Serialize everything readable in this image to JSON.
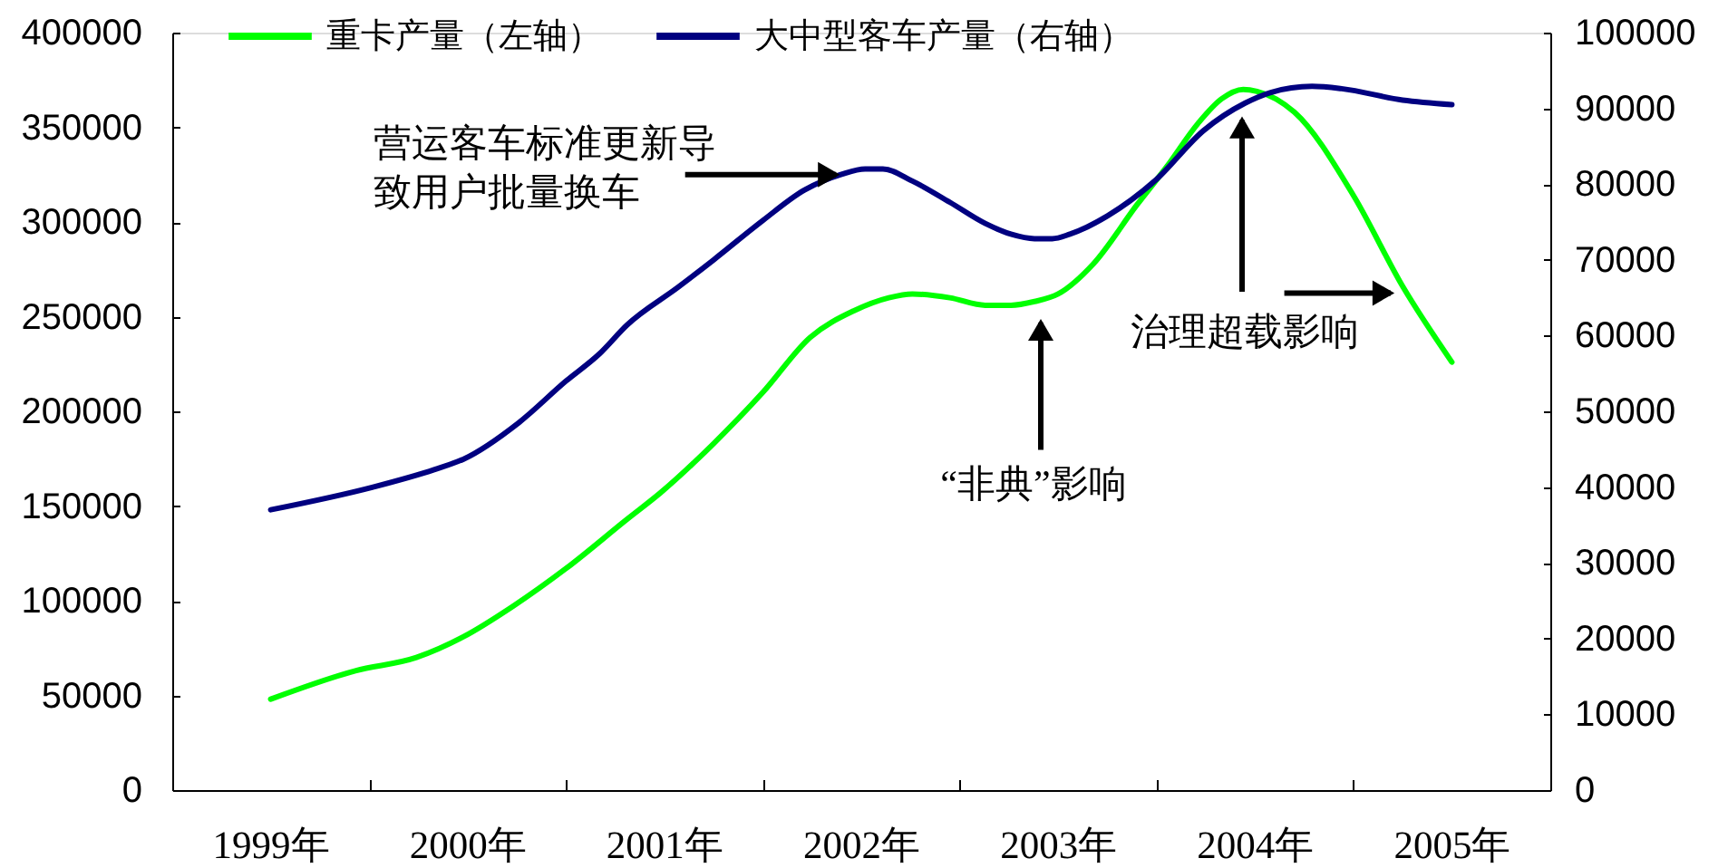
{
  "chart_data": {
    "type": "line",
    "legend": "top",
    "line_style": "solid",
    "xlim": [
      1998.5,
      2005.5
    ],
    "xticks": [
      {
        "value": 1999,
        "label": "1999年"
      },
      {
        "value": 1999.5,
        "label": null
      },
      {
        "value": 2000,
        "label": "2000年"
      },
      {
        "value": 2000.5,
        "label": null
      },
      {
        "value": 2001,
        "label": "2001年"
      },
      {
        "value": 2001.5,
        "label": null
      },
      {
        "value": 2002,
        "label": "2002年"
      },
      {
        "value": 2002.5,
        "label": null
      },
      {
        "value": 2003,
        "label": "2003年"
      },
      {
        "value": 2003.5,
        "label": null
      },
      {
        "value": 2004,
        "label": "2004年"
      },
      {
        "value": 2004.5,
        "label": null
      },
      {
        "value": 2005,
        "label": "2005年"
      }
    ],
    "ylim": [
      0,
      400000
    ],
    "yticks": [
      0,
      50000,
      100000,
      150000,
      200000,
      250000,
      300000,
      350000,
      400000
    ],
    "y2lim": [
      0,
      100000
    ],
    "y2ticks": [
      0,
      10000,
      20000,
      30000,
      40000,
      50000,
      60000,
      70000,
      80000,
      90000,
      100000
    ],
    "series": [
      {
        "name": "重卡产量（左轴）",
        "color": "#00ff00",
        "x": [
          1999.0,
          1999.43,
          1999.74,
          1999.98,
          2000.23,
          2000.5,
          2000.81,
          2000.98,
          2001.25,
          2001.5,
          2001.74,
          2001.96,
          2002.14,
          2002.26,
          2002.45,
          2002.63,
          2002.76,
          2002.88,
          2003.0,
          2003.18,
          2003.4,
          2003.55,
          2003.71,
          2003.83,
          2003.94,
          2004.01,
          2004.2,
          2004.5,
          2004.75,
          2005.0
        ],
        "values": [
          48000,
          63000,
          70000,
          81000,
          97000,
          117000,
          143000,
          157000,
          183000,
          210000,
          239000,
          253000,
          260000,
          262000,
          260000,
          256000,
          256000,
          258000,
          262000,
          278000,
          309000,
          329000,
          352000,
          365000,
          370000,
          369000,
          358000,
          314000,
          266000,
          226000
        ]
      },
      {
        "name": "大中型客车产量（右轴）",
        "color": "#000080",
        "axis": "y2",
        "x": [
          1999.0,
          1999.52,
          1999.83,
          1999.98,
          2000.26,
          2000.5,
          2000.67,
          2000.81,
          2001.07,
          2001.25,
          2001.5,
          2001.71,
          2001.9,
          2002.02,
          2002.11,
          2002.26,
          2002.45,
          2002.63,
          2002.76,
          2002.88,
          2002.97,
          2003.06,
          2003.25,
          2003.49,
          2003.74,
          2003.95,
          2004.08,
          2004.29,
          2004.44,
          2004.75,
          2005.0
        ],
        "values": [
          37000,
          40000,
          42300,
          43700,
          48500,
          54000,
          57600,
          61400,
          66400,
          70000,
          75200,
          79200,
          81300,
          82000,
          82000,
          80400,
          77600,
          74800,
          73400,
          72800,
          72800,
          73400,
          75800,
          80400,
          87100,
          90700,
          92100,
          92900,
          92600,
          91100,
          90500
        ]
      }
    ],
    "annotations": [
      {
        "text": "营运客车标准更新导致用户批量换车",
        "x": 2001.9,
        "y": 325000
      },
      "“非典”影响",
      "治理超载影响"
    ]
  }
}
